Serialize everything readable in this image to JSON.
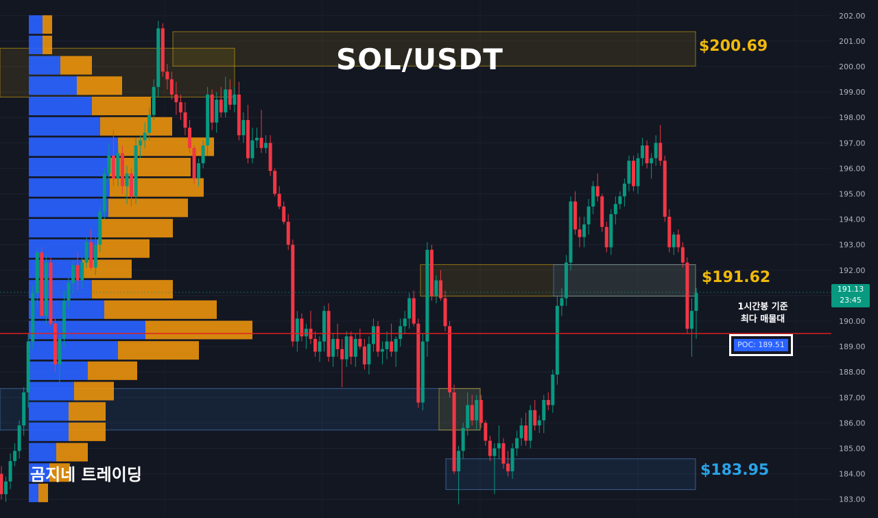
{
  "title": "SOL/USDT",
  "brand": "곰지네 트레이딩",
  "levels": {
    "upper": "$200.69",
    "mid": "$191.62",
    "lower": "$183.95"
  },
  "annotation": {
    "line1": "1시간봉 기준",
    "line2": "최다 매물대"
  },
  "poc": {
    "label": "POC: 189.51",
    "value": 189.51
  },
  "current": {
    "price": "191.13",
    "countdown": "23:45"
  },
  "colors": {
    "up": "#089981",
    "down": "#f23645",
    "volume_buy": "#2962ff",
    "volume_sell": "#f0960b",
    "level_yellow": "#f0b90b",
    "level_blue": "#2aa3e8",
    "poc_line": "#e02020"
  },
  "chart_data": {
    "type": "candlestick",
    "ylim": [
      182.7,
      202.3
    ],
    "y_ticks": [
      "202.00",
      "201.00",
      "200.00",
      "199.00",
      "198.00",
      "197.00",
      "196.00",
      "195.00",
      "194.00",
      "193.00",
      "192.00",
      "191.00",
      "190.00",
      "189.00",
      "188.00",
      "187.00",
      "186.00",
      "185.00",
      "184.00",
      "183.00"
    ],
    "zones": [
      {
        "name": "supply-top",
        "color": "yellow",
        "y_top": 201.37,
        "y_bottom": 200.02
      },
      {
        "name": "supply-left",
        "color": "yellow",
        "y_top": 200.72,
        "y_bottom": 198.8
      },
      {
        "name": "supply-mid",
        "color": "yellow",
        "y_top": 192.22,
        "y_bottom": 190.98
      },
      {
        "name": "demand-mid",
        "color": "blue",
        "y_top": 192.22,
        "y_bottom": 190.98
      },
      {
        "name": "demand-left",
        "color": "blue",
        "y_top": 187.35,
        "y_bottom": 185.72
      },
      {
        "name": "demand-left-yellow",
        "color": "yellow",
        "y_top": 187.35,
        "y_bottom": 185.72
      },
      {
        "name": "demand-bottom",
        "color": "blue",
        "y_top": 184.59,
        "y_bottom": 183.38
      }
    ],
    "volume_profile": [
      {
        "price": 201.65,
        "buy": 20,
        "sell": 14
      },
      {
        "price": 200.85,
        "buy": 20,
        "sell": 14
      },
      {
        "price": 200.05,
        "buy": 46,
        "sell": 46
      },
      {
        "price": 199.25,
        "buy": 70,
        "sell": 66
      },
      {
        "price": 198.45,
        "buy": 92,
        "sell": 86
      },
      {
        "price": 197.65,
        "buy": 104,
        "sell": 105
      },
      {
        "price": 196.85,
        "buy": 130,
        "sell": 140
      },
      {
        "price": 196.05,
        "buy": 118,
        "sell": 118
      },
      {
        "price": 195.25,
        "buy": 118,
        "sell": 137
      },
      {
        "price": 194.45,
        "buy": 116,
        "sell": 116
      },
      {
        "price": 193.65,
        "buy": 105,
        "sell": 105
      },
      {
        "price": 192.85,
        "buy": 100,
        "sell": 76
      },
      {
        "price": 192.05,
        "buy": 78,
        "sell": 72
      },
      {
        "price": 191.25,
        "buy": 92,
        "sell": 118
      },
      {
        "price": 190.45,
        "buy": 110,
        "sell": 164
      },
      {
        "price": 189.65,
        "buy": 170,
        "sell": 156
      },
      {
        "price": 188.85,
        "buy": 130,
        "sell": 118
      },
      {
        "price": 188.05,
        "buy": 86,
        "sell": 72
      },
      {
        "price": 187.25,
        "buy": 66,
        "sell": 58
      },
      {
        "price": 186.45,
        "buy": 58,
        "sell": 54
      },
      {
        "price": 185.65,
        "buy": 58,
        "sell": 54
      },
      {
        "price": 184.85,
        "buy": 40,
        "sell": 46
      },
      {
        "price": 184.05,
        "buy": 30,
        "sell": 30
      },
      {
        "price": 183.25,
        "buy": 14,
        "sell": 14
      }
    ],
    "candles": [
      [
        184.0,
        184.3,
        183.0,
        183.2
      ],
      [
        183.2,
        183.9,
        182.9,
        183.7
      ],
      [
        183.7,
        184.8,
        183.4,
        184.5
      ],
      [
        184.5,
        185.2,
        184.3,
        184.9
      ],
      [
        184.9,
        186.1,
        184.6,
        185.9
      ],
      [
        185.9,
        187.4,
        185.5,
        187.2
      ],
      [
        187.2,
        189.5,
        186.6,
        189.2
      ],
      [
        189.2,
        191.4,
        188.9,
        191.1
      ],
      [
        191.1,
        192.9,
        190.6,
        192.7
      ],
      [
        192.7,
        192.9,
        190.3,
        190.2
      ],
      [
        190.2,
        192.6,
        189.9,
        192.3
      ],
      [
        192.3,
        192.5,
        189.8,
        189.9
      ],
      [
        189.9,
        190.1,
        188.0,
        188.3
      ],
      [
        188.3,
        189.5,
        187.6,
        189.3
      ],
      [
        189.3,
        191.2,
        189.0,
        190.8
      ],
      [
        190.8,
        191.7,
        190.5,
        191.5
      ],
      [
        191.5,
        192.4,
        191.1,
        192.2
      ],
      [
        192.2,
        192.7,
        191.2,
        191.6
      ],
      [
        191.6,
        192.5,
        191.3,
        192.3
      ],
      [
        192.3,
        193.3,
        192.1,
        193.1
      ],
      [
        193.1,
        193.6,
        192.0,
        192.1
      ],
      [
        192.1,
        193.3,
        191.8,
        193.0
      ],
      [
        193.0,
        194.5,
        192.7,
        194.3
      ],
      [
        194.3,
        196.0,
        194.0,
        195.8
      ],
      [
        195.8,
        197.0,
        195.4,
        196.5
      ],
      [
        196.5,
        197.5,
        195.3,
        195.6
      ],
      [
        195.6,
        196.9,
        195.3,
        196.6
      ],
      [
        196.6,
        196.9,
        195.0,
        195.3
      ],
      [
        195.3,
        196.1,
        194.6,
        195.8
      ],
      [
        195.8,
        196.0,
        194.5,
        194.9
      ],
      [
        194.9,
        197.2,
        194.6,
        196.9
      ],
      [
        196.9,
        197.3,
        196.4,
        197.1
      ],
      [
        197.1,
        197.8,
        196.8,
        197.4
      ],
      [
        197.4,
        198.4,
        197.1,
        198.1
      ],
      [
        198.1,
        199.5,
        197.9,
        199.2
      ],
      [
        199.2,
        201.8,
        198.8,
        201.5
      ],
      [
        201.5,
        201.7,
        199.6,
        199.8
      ],
      [
        199.8,
        200.1,
        199.1,
        199.5
      ],
      [
        199.5,
        199.8,
        198.7,
        198.9
      ],
      [
        198.9,
        199.4,
        198.1,
        198.6
      ],
      [
        198.6,
        198.9,
        197.9,
        198.2
      ],
      [
        198.2,
        198.6,
        197.3,
        197.6
      ],
      [
        197.6,
        197.9,
        196.6,
        196.8
      ],
      [
        196.8,
        196.9,
        195.4,
        195.6
      ],
      [
        195.6,
        196.4,
        195.3,
        196.2
      ],
      [
        196.2,
        197.1,
        196.0,
        196.9
      ],
      [
        196.9,
        199.2,
        196.5,
        198.9
      ],
      [
        198.9,
        199.1,
        197.5,
        197.8
      ],
      [
        197.8,
        199.0,
        197.4,
        198.7
      ],
      [
        198.7,
        199.2,
        198.0,
        198.2
      ],
      [
        198.2,
        199.6,
        198.0,
        199.1
      ],
      [
        199.1,
        199.5,
        198.3,
        198.5
      ],
      [
        198.5,
        199.2,
        198.2,
        198.9
      ],
      [
        198.9,
        199.4,
        197.1,
        197.3
      ],
      [
        197.3,
        198.2,
        197.0,
        197.9
      ],
      [
        197.9,
        198.5,
        196.2,
        196.4
      ],
      [
        196.4,
        197.6,
        196.2,
        197.1
      ],
      [
        197.1,
        197.6,
        196.8,
        197.2
      ],
      [
        197.2,
        198.3,
        196.6,
        196.8
      ],
      [
        196.8,
        197.3,
        196.6,
        197.0
      ],
      [
        197.0,
        197.3,
        195.7,
        195.9
      ],
      [
        195.9,
        196.0,
        194.9,
        195.0
      ],
      [
        195.0,
        195.3,
        194.4,
        194.5
      ],
      [
        194.5,
        194.7,
        193.8,
        193.9
      ],
      [
        193.9,
        194.2,
        192.8,
        193.0
      ],
      [
        193.0,
        193.2,
        189.0,
        189.2
      ],
      [
        189.2,
        190.4,
        188.8,
        190.1
      ],
      [
        190.1,
        190.3,
        189.2,
        189.4
      ],
      [
        189.4,
        189.9,
        188.9,
        189.7
      ],
      [
        189.7,
        190.4,
        189.1,
        189.3
      ],
      [
        189.3,
        189.6,
        188.6,
        188.8
      ],
      [
        188.8,
        189.4,
        188.4,
        189.2
      ],
      [
        189.2,
        190.6,
        188.8,
        190.4
      ],
      [
        190.4,
        190.7,
        188.4,
        188.6
      ],
      [
        188.6,
        189.5,
        188.2,
        189.3
      ],
      [
        189.3,
        189.9,
        188.6,
        188.9
      ],
      [
        188.9,
        189.3,
        187.4,
        188.5
      ],
      [
        188.5,
        189.6,
        188.2,
        189.4
      ],
      [
        189.4,
        189.6,
        188.3,
        188.6
      ],
      [
        188.6,
        189.5,
        188.2,
        189.3
      ],
      [
        189.3,
        189.7,
        188.9,
        189.0
      ],
      [
        189.0,
        189.3,
        188.1,
        188.3
      ],
      [
        188.3,
        189.4,
        187.9,
        189.1
      ],
      [
        189.1,
        190.1,
        188.8,
        189.8
      ],
      [
        189.8,
        190.0,
        188.6,
        188.8
      ],
      [
        188.8,
        189.2,
        188.3,
        188.9
      ],
      [
        188.9,
        189.6,
        188.5,
        189.2
      ],
      [
        189.2,
        189.9,
        188.6,
        188.8
      ],
      [
        188.8,
        189.4,
        188.2,
        189.3
      ],
      [
        189.3,
        190.1,
        189.0,
        189.8
      ],
      [
        189.8,
        190.4,
        189.5,
        190.1
      ],
      [
        190.1,
        191.1,
        189.7,
        190.9
      ],
      [
        190.9,
        191.2,
        189.8,
        189.9
      ],
      [
        189.9,
        190.1,
        186.6,
        186.8
      ],
      [
        186.8,
        189.5,
        186.5,
        189.2
      ],
      [
        189.2,
        193.1,
        188.6,
        192.8
      ],
      [
        192.8,
        193.0,
        190.8,
        191.0
      ],
      [
        191.0,
        191.8,
        190.7,
        191.6
      ],
      [
        191.6,
        192.0,
        190.8,
        190.9
      ],
      [
        190.9,
        191.2,
        189.6,
        189.8
      ],
      [
        189.8,
        190.0,
        187.0,
        187.2
      ],
      [
        187.2,
        187.5,
        184.0,
        184.1
      ],
      [
        184.1,
        185.1,
        182.8,
        184.9
      ],
      [
        184.9,
        186.0,
        184.6,
        185.8
      ],
      [
        185.8,
        187.2,
        185.5,
        186.7
      ],
      [
        186.7,
        187.1,
        185.9,
        186.1
      ],
      [
        186.1,
        187.1,
        185.7,
        186.9
      ],
      [
        186.9,
        187.1,
        185.8,
        186.0
      ],
      [
        186.0,
        186.1,
        185.1,
        185.3
      ],
      [
        185.3,
        185.5,
        184.5,
        184.7
      ],
      [
        184.7,
        185.2,
        183.2,
        185.0
      ],
      [
        185.0,
        185.9,
        184.6,
        185.2
      ],
      [
        185.2,
        185.4,
        184.2,
        184.4
      ],
      [
        184.4,
        184.9,
        183.9,
        184.1
      ],
      [
        184.1,
        185.2,
        183.8,
        185.0
      ],
      [
        185.0,
        185.7,
        184.7,
        185.4
      ],
      [
        185.4,
        186.2,
        185.1,
        185.9
      ],
      [
        185.9,
        186.4,
        185.1,
        185.3
      ],
      [
        185.3,
        186.7,
        185.0,
        186.5
      ],
      [
        186.5,
        186.9,
        185.7,
        185.9
      ],
      [
        185.9,
        186.3,
        185.6,
        186.1
      ],
      [
        186.1,
        187.1,
        185.6,
        186.9
      ],
      [
        186.9,
        187.2,
        186.5,
        186.7
      ],
      [
        186.7,
        188.1,
        186.4,
        187.9
      ],
      [
        187.9,
        191.0,
        187.5,
        190.6
      ],
      [
        190.6,
        191.3,
        190.2,
        190.9
      ],
      [
        190.9,
        192.6,
        190.6,
        192.3
      ],
      [
        192.3,
        194.9,
        192.0,
        194.7
      ],
      [
        194.7,
        195.1,
        193.4,
        193.6
      ],
      [
        193.6,
        194.1,
        192.9,
        193.3
      ],
      [
        193.3,
        194.1,
        192.9,
        193.8
      ],
      [
        193.8,
        194.8,
        193.4,
        194.5
      ],
      [
        194.5,
        195.5,
        194.2,
        195.3
      ],
      [
        195.3,
        195.8,
        194.7,
        194.9
      ],
      [
        194.9,
        195.0,
        193.5,
        193.7
      ],
      [
        193.7,
        193.9,
        192.7,
        192.9
      ],
      [
        192.9,
        194.4,
        192.6,
        194.2
      ],
      [
        194.2,
        194.9,
        193.8,
        194.6
      ],
      [
        194.6,
        195.1,
        194.4,
        194.9
      ],
      [
        194.9,
        195.6,
        194.5,
        195.4
      ],
      [
        195.4,
        196.5,
        195.1,
        196.3
      ],
      [
        196.3,
        196.5,
        195.1,
        195.3
      ],
      [
        195.3,
        196.6,
        195.0,
        196.4
      ],
      [
        196.4,
        197.2,
        196.1,
        196.9
      ],
      [
        196.9,
        197.1,
        196.0,
        196.2
      ],
      [
        196.2,
        196.6,
        195.6,
        196.4
      ],
      [
        196.4,
        197.3,
        196.1,
        197.0
      ],
      [
        197.0,
        197.7,
        196.1,
        196.3
      ],
      [
        196.3,
        196.5,
        193.9,
        194.1
      ],
      [
        194.1,
        194.4,
        192.7,
        192.9
      ],
      [
        192.9,
        193.5,
        192.6,
        193.4
      ],
      [
        193.4,
        193.6,
        192.7,
        192.9
      ],
      [
        192.9,
        193.1,
        192.1,
        192.3
      ],
      [
        192.3,
        192.5,
        189.5,
        189.7
      ],
      [
        189.7,
        190.9,
        188.6,
        190.4
      ],
      [
        190.4,
        191.3,
        189.3,
        191.1
      ]
    ]
  }
}
